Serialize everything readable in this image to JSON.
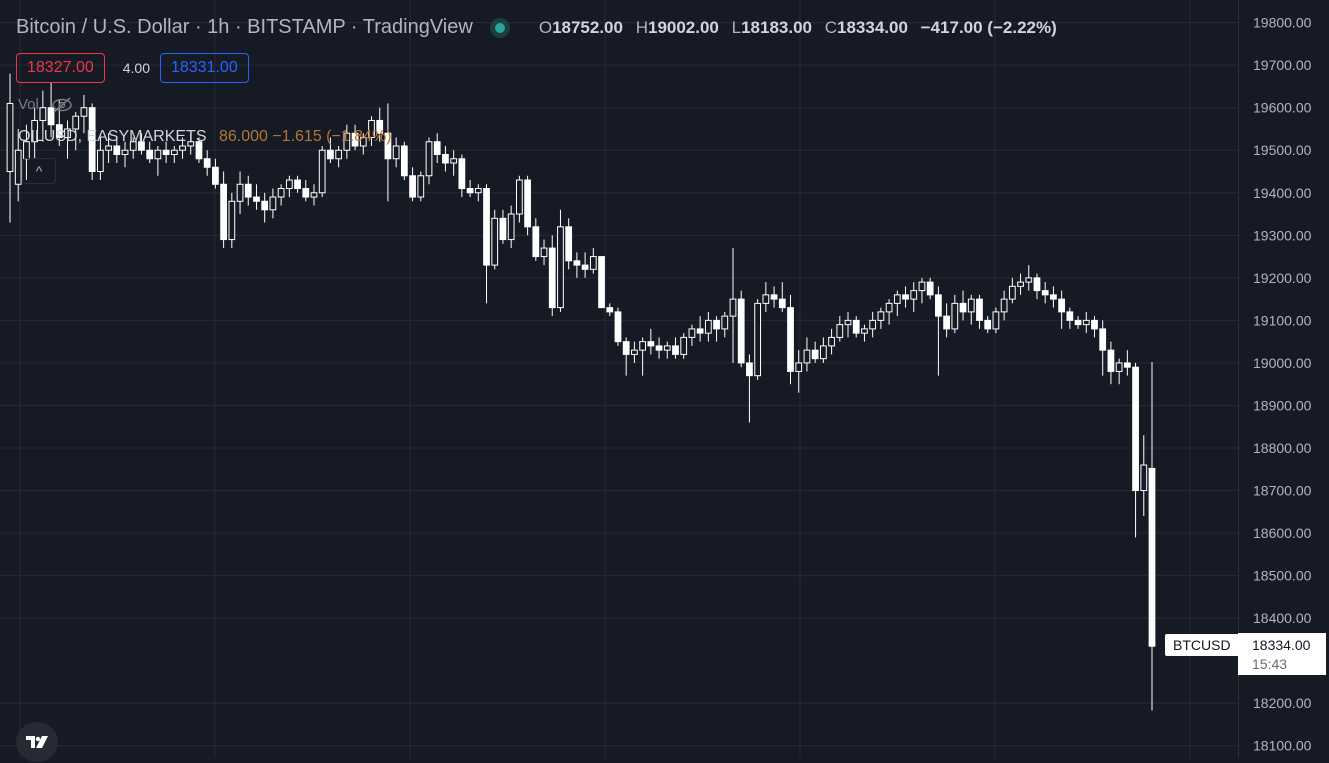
{
  "header": {
    "title": "Bitcoin / U.S. Dollar · 1h · BITSTAMP · TradingView",
    "ohlc": {
      "o_label": "O",
      "o": "18752.00",
      "h_label": "H",
      "h": "19002.00",
      "l_label": "L",
      "l": "18183.00",
      "c_label": "C",
      "c": "18334.00",
      "change": "−417.00 (−2.22%)"
    }
  },
  "trading": {
    "sell_price": "18327.00",
    "spread": "4.00",
    "buy_price": "18331.00"
  },
  "indicators": {
    "volume_label": "Vol",
    "overlay_symbol": "OILUSD, EASYMARKETS",
    "overlay_values": "86.000  −1.615 (−1.84%)",
    "collapse_glyph": "^"
  },
  "price_scale": {
    "last_symbol": "BTCUSD",
    "last_price": "18334.00",
    "countdown": "15:43"
  },
  "colors": {
    "background": "#161a25",
    "grid": "#262a35",
    "candle": "#ffffff",
    "sell": "#f23645",
    "buy": "#2962ff",
    "overlay": "#b27833",
    "live": "#26a69a"
  },
  "icons": [
    "eye-crossed-icon",
    "chevron-up-icon",
    "tradingview-logo-icon"
  ],
  "chart_data": {
    "type": "candlestick",
    "symbol": "BTCUSD",
    "interval": "1h",
    "y_ticks": [
      19800,
      19700,
      19600,
      19500,
      19400,
      19300,
      19200,
      19100,
      19000,
      18900,
      18800,
      18700,
      18600,
      18500,
      18400,
      18200,
      18100
    ],
    "ylim": [
      18090,
      19825
    ],
    "grid": true,
    "candles": [
      {
        "o": 19450,
        "h": 19680,
        "l": 19330,
        "c": 19610
      },
      {
        "o": 19420,
        "h": 19550,
        "l": 19380,
        "c": 19500
      },
      {
        "o": 19480,
        "h": 19560,
        "l": 19430,
        "c": 19520
      },
      {
        "o": 19520,
        "h": 19600,
        "l": 19480,
        "c": 19570
      },
      {
        "o": 19570,
        "h": 19640,
        "l": 19520,
        "c": 19600
      },
      {
        "o": 19600,
        "h": 19660,
        "l": 19530,
        "c": 19560
      },
      {
        "o": 19560,
        "h": 19620,
        "l": 19510,
        "c": 19530
      },
      {
        "o": 19530,
        "h": 19570,
        "l": 19480,
        "c": 19550
      },
      {
        "o": 19550,
        "h": 19590,
        "l": 19500,
        "c": 19580
      },
      {
        "o": 19580,
        "h": 19630,
        "l": 19540,
        "c": 19600
      },
      {
        "o": 19600,
        "h": 19610,
        "l": 19430,
        "c": 19450
      },
      {
        "o": 19450,
        "h": 19530,
        "l": 19430,
        "c": 19500
      },
      {
        "o": 19500,
        "h": 19540,
        "l": 19470,
        "c": 19510
      },
      {
        "o": 19510,
        "h": 19530,
        "l": 19470,
        "c": 19490
      },
      {
        "o": 19490,
        "h": 19520,
        "l": 19460,
        "c": 19500
      },
      {
        "o": 19500,
        "h": 19530,
        "l": 19480,
        "c": 19520
      },
      {
        "o": 19520,
        "h": 19540,
        "l": 19490,
        "c": 19500
      },
      {
        "o": 19500,
        "h": 19520,
        "l": 19470,
        "c": 19480
      },
      {
        "o": 19480,
        "h": 19510,
        "l": 19440,
        "c": 19500
      },
      {
        "o": 19500,
        "h": 19520,
        "l": 19470,
        "c": 19490
      },
      {
        "o": 19490,
        "h": 19510,
        "l": 19470,
        "c": 19500
      },
      {
        "o": 19500,
        "h": 19530,
        "l": 19480,
        "c": 19510
      },
      {
        "o": 19510,
        "h": 19540,
        "l": 19490,
        "c": 19520
      },
      {
        "o": 19520,
        "h": 19530,
        "l": 19470,
        "c": 19480
      },
      {
        "o": 19480,
        "h": 19500,
        "l": 19440,
        "c": 19460
      },
      {
        "o": 19460,
        "h": 19480,
        "l": 19410,
        "c": 19420
      },
      {
        "o": 19420,
        "h": 19450,
        "l": 19270,
        "c": 19290
      },
      {
        "o": 19290,
        "h": 19400,
        "l": 19270,
        "c": 19380
      },
      {
        "o": 19380,
        "h": 19450,
        "l": 19350,
        "c": 19420
      },
      {
        "o": 19420,
        "h": 19440,
        "l": 19370,
        "c": 19390
      },
      {
        "o": 19390,
        "h": 19420,
        "l": 19360,
        "c": 19380
      },
      {
        "o": 19380,
        "h": 19400,
        "l": 19330,
        "c": 19360
      },
      {
        "o": 19360,
        "h": 19410,
        "l": 19340,
        "c": 19390
      },
      {
        "o": 19390,
        "h": 19420,
        "l": 19370,
        "c": 19410
      },
      {
        "o": 19410,
        "h": 19440,
        "l": 19390,
        "c": 19430
      },
      {
        "o": 19430,
        "h": 19440,
        "l": 19400,
        "c": 19410
      },
      {
        "o": 19410,
        "h": 19430,
        "l": 19380,
        "c": 19390
      },
      {
        "o": 19390,
        "h": 19420,
        "l": 19370,
        "c": 19400
      },
      {
        "o": 19400,
        "h": 19510,
        "l": 19390,
        "c": 19500
      },
      {
        "o": 19500,
        "h": 19530,
        "l": 19470,
        "c": 19480
      },
      {
        "o": 19480,
        "h": 19510,
        "l": 19460,
        "c": 19500
      },
      {
        "o": 19500,
        "h": 19560,
        "l": 19480,
        "c": 19540
      },
      {
        "o": 19540,
        "h": 19560,
        "l": 19500,
        "c": 19510
      },
      {
        "o": 19510,
        "h": 19540,
        "l": 19490,
        "c": 19530
      },
      {
        "o": 19530,
        "h": 19580,
        "l": 19510,
        "c": 19570
      },
      {
        "o": 19570,
        "h": 19600,
        "l": 19520,
        "c": 19540
      },
      {
        "o": 19540,
        "h": 19610,
        "l": 19380,
        "c": 19480
      },
      {
        "o": 19480,
        "h": 19530,
        "l": 19460,
        "c": 19510
      },
      {
        "o": 19510,
        "h": 19520,
        "l": 19430,
        "c": 19440
      },
      {
        "o": 19440,
        "h": 19460,
        "l": 19380,
        "c": 19390
      },
      {
        "o": 19390,
        "h": 19450,
        "l": 19380,
        "c": 19440
      },
      {
        "o": 19440,
        "h": 19530,
        "l": 19420,
        "c": 19520
      },
      {
        "o": 19520,
        "h": 19540,
        "l": 19470,
        "c": 19490
      },
      {
        "o": 19490,
        "h": 19510,
        "l": 19450,
        "c": 19470
      },
      {
        "o": 19470,
        "h": 19500,
        "l": 19440,
        "c": 19480
      },
      {
        "o": 19480,
        "h": 19490,
        "l": 19390,
        "c": 19410
      },
      {
        "o": 19410,
        "h": 19430,
        "l": 19390,
        "c": 19400
      },
      {
        "o": 19400,
        "h": 19420,
        "l": 19380,
        "c": 19410
      },
      {
        "o": 19410,
        "h": 19420,
        "l": 19140,
        "c": 19230
      },
      {
        "o": 19230,
        "h": 19360,
        "l": 19220,
        "c": 19340
      },
      {
        "o": 19340,
        "h": 19360,
        "l": 19280,
        "c": 19290
      },
      {
        "o": 19290,
        "h": 19370,
        "l": 19270,
        "c": 19350
      },
      {
        "o": 19350,
        "h": 19440,
        "l": 19330,
        "c": 19430
      },
      {
        "o": 19430,
        "h": 19440,
        "l": 19300,
        "c": 19320
      },
      {
        "o": 19320,
        "h": 19340,
        "l": 19240,
        "c": 19250
      },
      {
        "o": 19250,
        "h": 19290,
        "l": 19230,
        "c": 19270
      },
      {
        "o": 19270,
        "h": 19300,
        "l": 19110,
        "c": 19130
      },
      {
        "o": 19130,
        "h": 19360,
        "l": 19120,
        "c": 19320
      },
      {
        "o": 19320,
        "h": 19340,
        "l": 19220,
        "c": 19240
      },
      {
        "o": 19240,
        "h": 19260,
        "l": 19200,
        "c": 19230
      },
      {
        "o": 19230,
        "h": 19260,
        "l": 19200,
        "c": 19220
      },
      {
        "o": 19220,
        "h": 19270,
        "l": 19210,
        "c": 19250
      },
      {
        "o": 19250,
        "h": 19240,
        "l": 19130,
        "c": 19130
      },
      {
        "o": 19130,
        "h": 19140,
        "l": 19110,
        "c": 19120
      },
      {
        "o": 19120,
        "h": 19130,
        "l": 19040,
        "c": 19050
      },
      {
        "o": 19050,
        "h": 19060,
        "l": 18970,
        "c": 19020
      },
      {
        "o": 19020,
        "h": 19050,
        "l": 19000,
        "c": 19030
      },
      {
        "o": 19030,
        "h": 19060,
        "l": 18970,
        "c": 19050
      },
      {
        "o": 19050,
        "h": 19080,
        "l": 19020,
        "c": 19040
      },
      {
        "o": 19040,
        "h": 19060,
        "l": 19010,
        "c": 19030
      },
      {
        "o": 19030,
        "h": 19050,
        "l": 19010,
        "c": 19040
      },
      {
        "o": 19040,
        "h": 19060,
        "l": 19010,
        "c": 19020
      },
      {
        "o": 19020,
        "h": 19070,
        "l": 19010,
        "c": 19060
      },
      {
        "o": 19060,
        "h": 19090,
        "l": 19040,
        "c": 19080
      },
      {
        "o": 19080,
        "h": 19110,
        "l": 19050,
        "c": 19070
      },
      {
        "o": 19070,
        "h": 19120,
        "l": 19050,
        "c": 19100
      },
      {
        "o": 19100,
        "h": 19110,
        "l": 19050,
        "c": 19080
      },
      {
        "o": 19080,
        "h": 19120,
        "l": 19060,
        "c": 19110
      },
      {
        "o": 19110,
        "h": 19270,
        "l": 19000,
        "c": 19150
      },
      {
        "o": 19150,
        "h": 19170,
        "l": 18990,
        "c": 19000
      },
      {
        "o": 19000,
        "h": 19020,
        "l": 18860,
        "c": 18970
      },
      {
        "o": 18970,
        "h": 19150,
        "l": 18960,
        "c": 19140
      },
      {
        "o": 19140,
        "h": 19190,
        "l": 19120,
        "c": 19160
      },
      {
        "o": 19160,
        "h": 19180,
        "l": 19130,
        "c": 19150
      },
      {
        "o": 19150,
        "h": 19190,
        "l": 19120,
        "c": 19130
      },
      {
        "o": 19130,
        "h": 19160,
        "l": 18950,
        "c": 18980
      },
      {
        "o": 18980,
        "h": 19030,
        "l": 18930,
        "c": 19000
      },
      {
        "o": 19000,
        "h": 19060,
        "l": 18980,
        "c": 19030
      },
      {
        "o": 19030,
        "h": 19050,
        "l": 19000,
        "c": 19010
      },
      {
        "o": 19010,
        "h": 19060,
        "l": 19000,
        "c": 19040
      },
      {
        "o": 19040,
        "h": 19080,
        "l": 19020,
        "c": 19060
      },
      {
        "o": 19060,
        "h": 19110,
        "l": 19050,
        "c": 19090
      },
      {
        "o": 19090,
        "h": 19120,
        "l": 19060,
        "c": 19100
      },
      {
        "o": 19100,
        "h": 19110,
        "l": 19060,
        "c": 19070
      },
      {
        "o": 19070,
        "h": 19090,
        "l": 19050,
        "c": 19080
      },
      {
        "o": 19080,
        "h": 19120,
        "l": 19060,
        "c": 19100
      },
      {
        "o": 19100,
        "h": 19130,
        "l": 19080,
        "c": 19120
      },
      {
        "o": 19120,
        "h": 19150,
        "l": 19090,
        "c": 19140
      },
      {
        "o": 19140,
        "h": 19170,
        "l": 19110,
        "c": 19160
      },
      {
        "o": 19160,
        "h": 19180,
        "l": 19130,
        "c": 19150
      },
      {
        "o": 19150,
        "h": 19190,
        "l": 19120,
        "c": 19170
      },
      {
        "o": 19170,
        "h": 19200,
        "l": 19140,
        "c": 19190
      },
      {
        "o": 19190,
        "h": 19200,
        "l": 19150,
        "c": 19160
      },
      {
        "o": 19160,
        "h": 19180,
        "l": 18970,
        "c": 19110
      },
      {
        "o": 19110,
        "h": 19140,
        "l": 19060,
        "c": 19080
      },
      {
        "o": 19080,
        "h": 19160,
        "l": 19070,
        "c": 19140
      },
      {
        "o": 19140,
        "h": 19170,
        "l": 19100,
        "c": 19120
      },
      {
        "o": 19120,
        "h": 19160,
        "l": 19090,
        "c": 19150
      },
      {
        "o": 19150,
        "h": 19160,
        "l": 19080,
        "c": 19100
      },
      {
        "o": 19100,
        "h": 19110,
        "l": 19070,
        "c": 19080
      },
      {
        "o": 19080,
        "h": 19130,
        "l": 19070,
        "c": 19120
      },
      {
        "o": 19120,
        "h": 19170,
        "l": 19100,
        "c": 19150
      },
      {
        "o": 19150,
        "h": 19200,
        "l": 19140,
        "c": 19180
      },
      {
        "o": 19180,
        "h": 19210,
        "l": 19160,
        "c": 19190
      },
      {
        "o": 19190,
        "h": 19230,
        "l": 19170,
        "c": 19200
      },
      {
        "o": 19200,
        "h": 19210,
        "l": 19150,
        "c": 19170
      },
      {
        "o": 19170,
        "h": 19190,
        "l": 19140,
        "c": 19160
      },
      {
        "o": 19160,
        "h": 19180,
        "l": 19130,
        "c": 19150
      },
      {
        "o": 19150,
        "h": 19170,
        "l": 19080,
        "c": 19120
      },
      {
        "o": 19120,
        "h": 19130,
        "l": 19080,
        "c": 19100
      },
      {
        "o": 19100,
        "h": 19110,
        "l": 19080,
        "c": 19090
      },
      {
        "o": 19090,
        "h": 19120,
        "l": 19070,
        "c": 19100
      },
      {
        "o": 19100,
        "h": 19110,
        "l": 19060,
        "c": 19080
      },
      {
        "o": 19080,
        "h": 19100,
        "l": 18970,
        "c": 19030
      },
      {
        "o": 19030,
        "h": 19050,
        "l": 18950,
        "c": 18980
      },
      {
        "o": 18980,
        "h": 19010,
        "l": 18950,
        "c": 19000
      },
      {
        "o": 19000,
        "h": 19030,
        "l": 18970,
        "c": 18990
      },
      {
        "o": 18990,
        "h": 19000,
        "l": 18590,
        "c": 18700
      },
      {
        "o": 18700,
        "h": 18830,
        "l": 18640,
        "c": 18760
      },
      {
        "o": 18752,
        "h": 19002,
        "l": 18183,
        "c": 18334
      }
    ]
  }
}
